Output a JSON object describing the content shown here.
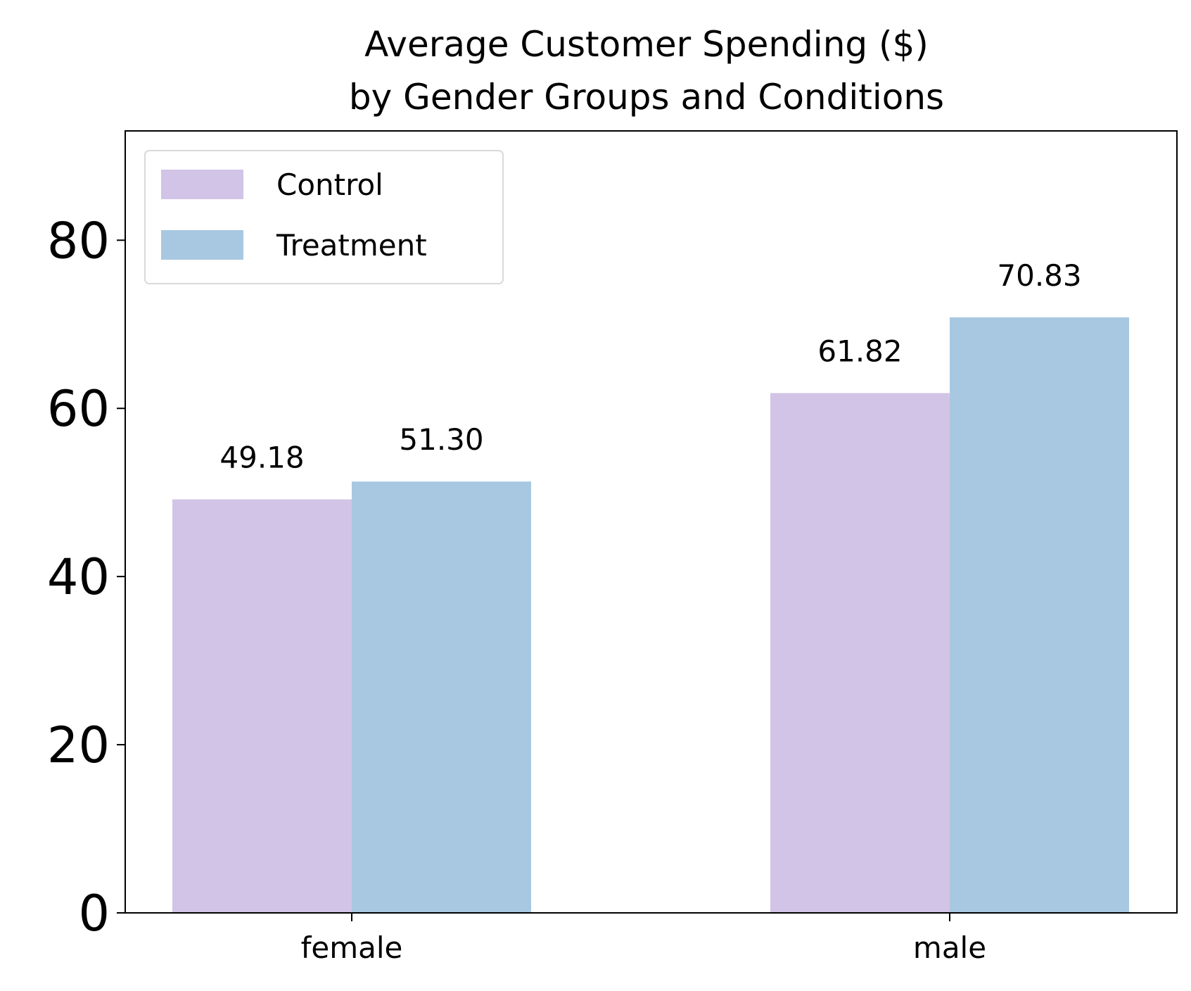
{
  "chart_data": {
    "type": "bar",
    "title": "Average Customer Spending ($)\nby Gender Groups and Conditions",
    "title_lines": [
      "Average Customer Spending ($)",
      "by Gender Groups and Conditions"
    ],
    "xlabel": "",
    "ylabel": "",
    "categories": [
      "female",
      "male"
    ],
    "series": [
      {
        "name": "Control",
        "color": "#d1c4e6",
        "values": [
          49.18,
          61.82
        ],
        "labels": [
          "49.18",
          "61.82"
        ]
      },
      {
        "name": "Treatment",
        "color": "#a8c8e1",
        "values": [
          51.3,
          70.83
        ],
        "labels": [
          "51.30",
          "70.83"
        ]
      }
    ],
    "yticks": [
      0,
      20,
      40,
      60,
      80
    ],
    "ytick_labels": [
      "0",
      "20",
      "40",
      "60",
      "80"
    ],
    "ylim": [
      0,
      93
    ],
    "grid": false,
    "legend_position": "top-left"
  }
}
